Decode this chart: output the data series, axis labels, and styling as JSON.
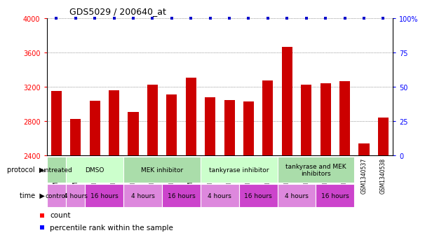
{
  "title": "GDS5029 / 200640_at",
  "samples": [
    "GSM1340521",
    "GSM1340522",
    "GSM1340523",
    "GSM1340524",
    "GSM1340531",
    "GSM1340532",
    "GSM1340527",
    "GSM1340528",
    "GSM1340535",
    "GSM1340536",
    "GSM1340525",
    "GSM1340526",
    "GSM1340533",
    "GSM1340534",
    "GSM1340529",
    "GSM1340530",
    "GSM1340537",
    "GSM1340538"
  ],
  "counts": [
    3155,
    2830,
    3040,
    3165,
    2910,
    3225,
    3110,
    3310,
    3080,
    3050,
    3030,
    3280,
    3670,
    3230,
    3240,
    3270,
    2540,
    2845
  ],
  "bar_color": "#cc0000",
  "dot_color": "#0000cc",
  "ylim": [
    2400,
    4000
  ],
  "yticks": [
    2400,
    2800,
    3200,
    3600,
    4000
  ],
  "y2ticks": [
    0,
    25,
    50,
    75,
    100
  ],
  "y2ticklabels": [
    "0",
    "25",
    "50",
    "75",
    "100%"
  ],
  "proto_spans": [
    {
      "label": "untreated",
      "start": 0,
      "end": 1,
      "color": "#aaddaa"
    },
    {
      "label": "DMSO",
      "start": 1,
      "end": 4,
      "color": "#ccffcc"
    },
    {
      "label": "MEK inhibitor",
      "start": 4,
      "end": 8,
      "color": "#aaddaa"
    },
    {
      "label": "tankyrase inhibitor",
      "start": 8,
      "end": 12,
      "color": "#ccffcc"
    },
    {
      "label": "tankyrase and MEK\ninhibitors",
      "start": 12,
      "end": 16,
      "color": "#aaddaa"
    }
  ],
  "time_spans": [
    {
      "label": "control",
      "start": 0,
      "end": 1,
      "color": "#dd88dd"
    },
    {
      "label": "4 hours",
      "start": 1,
      "end": 2,
      "color": "#dd88dd"
    },
    {
      "label": "16 hours",
      "start": 2,
      "end": 4,
      "color": "#cc44cc"
    },
    {
      "label": "4 hours",
      "start": 4,
      "end": 6,
      "color": "#dd88dd"
    },
    {
      "label": "16 hours",
      "start": 6,
      "end": 8,
      "color": "#cc44cc"
    },
    {
      "label": "4 hours",
      "start": 8,
      "end": 10,
      "color": "#dd88dd"
    },
    {
      "label": "16 hours",
      "start": 10,
      "end": 12,
      "color": "#cc44cc"
    },
    {
      "label": "4 hours",
      "start": 12,
      "end": 14,
      "color": "#dd88dd"
    },
    {
      "label": "16 hours",
      "start": 14,
      "end": 16,
      "color": "#cc44cc"
    }
  ]
}
